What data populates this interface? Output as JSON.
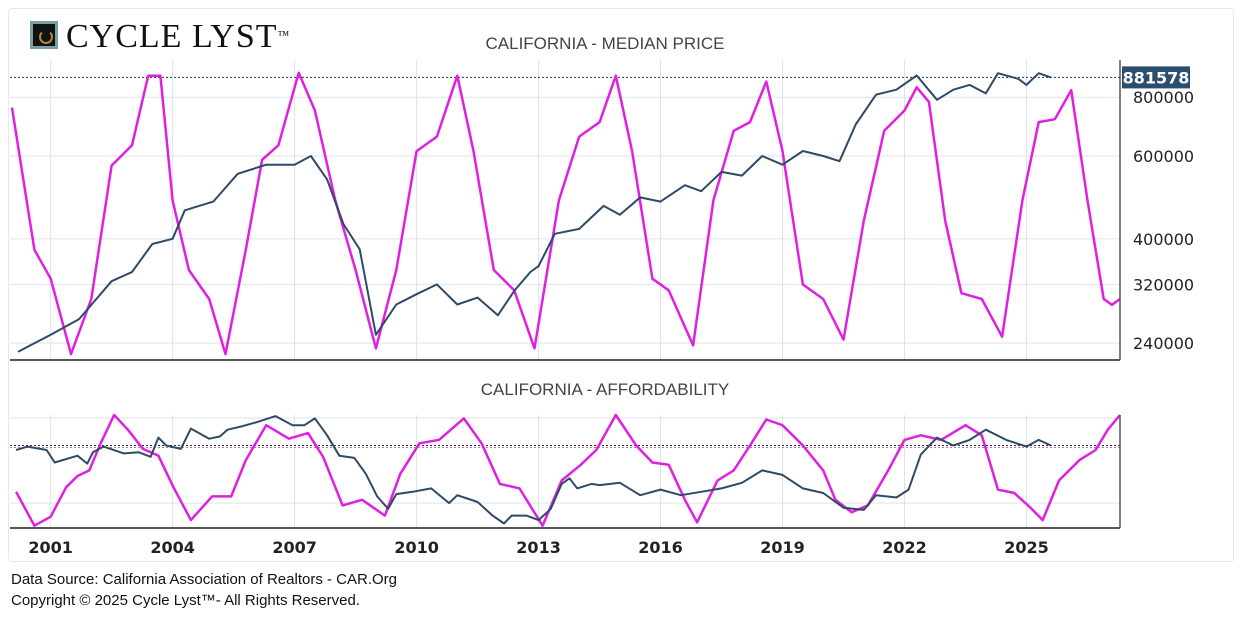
{
  "logo": {
    "text": "CYCLE LYST",
    "tm": "™"
  },
  "footer": {
    "source": "Data Source: California Association of Realtors - CAR.Org",
    "copyright": "Copyright © 2025 Cycle Lyst™- All Rights Reserved."
  },
  "colors": {
    "price": "#2e4a66",
    "cycle": "#e020e0",
    "last_value_bg": "#2b4d70",
    "grid": "#dde3e8"
  },
  "chart_data": [
    {
      "type": "line",
      "title": "CALIFORNIA - MEDIAN PRICE",
      "y_scale": "log",
      "ylim": [
        221000,
        960000
      ],
      "xlim": [
        2000.0,
        2027.3
      ],
      "x_ticks": [
        "2001",
        "2004",
        "2007",
        "2010",
        "2013",
        "2016",
        "2019",
        "2022",
        "2025"
      ],
      "y_ticks": [
        240000,
        320000,
        400000,
        600000,
        800000
      ],
      "y_tick_labels": [
        "240000",
        "320000",
        "400000",
        "600000",
        "800000"
      ],
      "last_value": 881578,
      "last_value_label": "881578",
      "grid": true,
      "series": [
        {
          "key": "price",
          "x": [
            2000.2,
            2001,
            2001.7,
            2002.5,
            2003,
            2003.5,
            2004,
            2004.3,
            2005,
            2005.6,
            2006.3,
            2007,
            2007.4,
            2007.8,
            2008.2,
            2008.6,
            2009,
            2009.5,
            2010,
            2010.5,
            2011,
            2011.5,
            2012,
            2012.4,
            2012.8,
            2013,
            2013.4,
            2014,
            2014.6,
            2015,
            2015.5,
            2016,
            2016.6,
            2017,
            2017.5,
            2018,
            2018.5,
            2019,
            2019.5,
            2020,
            2020.4,
            2020.8,
            2021.3,
            2021.8,
            2022.3,
            2022.8,
            2023.2,
            2023.6,
            2024,
            2024.3,
            2024.8,
            2025,
            2025.3,
            2025.6
          ],
          "y": [
            230000,
            250000,
            270000,
            325000,
            340000,
            390000,
            400000,
            460000,
            480000,
            550000,
            575000,
            575000,
            600000,
            535000,
            430000,
            380000,
            250000,
            290000,
            305000,
            320000,
            290000,
            300000,
            275000,
            310000,
            340000,
            350000,
            410000,
            420000,
            470000,
            450000,
            490000,
            480000,
            520000,
            505000,
            555000,
            545000,
            600000,
            575000,
            615000,
            600000,
            585000,
            700000,
            810000,
            830000,
            890000,
            790000,
            830000,
            850000,
            815000,
            900000,
            875000,
            850000,
            900000,
            881578
          ]
        },
        {
          "key": "cycle",
          "x": [
            2000.05,
            2000.6,
            2001,
            2001.5,
            2002,
            2002.5,
            2003,
            2003.4,
            2003.7,
            2004,
            2004.4,
            2004.9,
            2005.3,
            2005.8,
            2006.2,
            2006.6,
            2007.1,
            2007.5,
            2008,
            2008.5,
            2009,
            2009.5,
            2010,
            2010.5,
            2011,
            2011.4,
            2011.9,
            2012.4,
            2012.9,
            2013.5,
            2014,
            2014.5,
            2014.9,
            2015.3,
            2015.8,
            2016.2,
            2016.8,
            2017.3,
            2017.8,
            2018.2,
            2018.6,
            2019,
            2019.5,
            2020,
            2020.5,
            2021,
            2021.5,
            2022,
            2022.3,
            2022.6,
            2023,
            2023.4,
            2023.9,
            2024.4,
            2024.9,
            2025.3,
            2025.7,
            2026.1,
            2026.5,
            2026.9,
            2027.1,
            2027.3
          ],
          "y": [
            86,
            37,
            27,
            1,
            20,
            66,
            73,
            97,
            97,
            54,
            30,
            20,
            1,
            37,
            68,
            73,
            98,
            85,
            54,
            30,
            3,
            30,
            71,
            76,
            97,
            71,
            30,
            23,
            3,
            54,
            76,
            81,
            97,
            71,
            27,
            23,
            4,
            54,
            78,
            81,
            95,
            71,
            25,
            20,
            6,
            47,
            78,
            85,
            93,
            88,
            47,
            22,
            20,
            7,
            54,
            81,
            82,
            92,
            54,
            20,
            18,
            20
          ]
        }
      ]
    },
    {
      "type": "line",
      "title": "CALIFORNIA - AFFORDABILITY",
      "ylim": [
        0,
        100
      ],
      "xlim": [
        2000.0,
        2027.3
      ],
      "reference_line": 73,
      "grid": true,
      "series": [
        {
          "key": "affordability",
          "x": [
            2000.15,
            2000.43,
            2000.9,
            2001.1,
            2001.66,
            2001.9,
            2002.04,
            2002.3,
            2002.8,
            2003.17,
            2003.46,
            2003.65,
            2003.84,
            2004.2,
            2004.45,
            2004.9,
            2005.16,
            2005.35,
            2005.7,
            2006.1,
            2006.53,
            2006.95,
            2007.24,
            2007.5,
            2007.8,
            2008.1,
            2008.47,
            2008.75,
            2009.03,
            2009.3,
            2009.5,
            2009.9,
            2010.36,
            2010.8,
            2011.0,
            2011.5,
            2011.87,
            2012.15,
            2012.34,
            2012.7,
            2013,
            2013.3,
            2013.57,
            2013.76,
            2013.95,
            2014.3,
            2014.5,
            2015,
            2015.5,
            2016,
            2016.5,
            2017,
            2017.5,
            2018,
            2018.5,
            2019,
            2019.5,
            2020,
            2020.5,
            2021,
            2021.3,
            2021.8,
            2022.1,
            2022.4,
            2022.8,
            2023.2,
            2023.6,
            2024,
            2024.5,
            2025,
            2025.3,
            2025.6
          ],
          "y": [
            69,
            72,
            69,
            58,
            64,
            57,
            67,
            72,
            66,
            67,
            63,
            80,
            73,
            70,
            88,
            79,
            81,
            87,
            90,
            94,
            99,
            91,
            91,
            97,
            82,
            64,
            62,
            48,
            28,
            17,
            30,
            32,
            35,
            22,
            29,
            23,
            11,
            4,
            11,
            11,
            7,
            17,
            39,
            44,
            35,
            39,
            38,
            40,
            29,
            34,
            29,
            32,
            35,
            40,
            51,
            47,
            35,
            31,
            18,
            16,
            29,
            27,
            34,
            65,
            80,
            73,
            78,
            87,
            78,
            72,
            78,
            73
          ]
        },
        {
          "key": "cycle",
          "x": [
            2000.15,
            2000.6,
            2001,
            2001.38,
            2001.66,
            2001.95,
            2002.23,
            2002.56,
            2002.9,
            2003.27,
            2003.65,
            2004.02,
            2004.45,
            2004.97,
            2005.44,
            2005.8,
            2006.3,
            2006.86,
            2007.33,
            2007.7,
            2008.18,
            2008.66,
            2009.22,
            2009.6,
            2010.07,
            2010.55,
            2011.16,
            2011.6,
            2012.05,
            2012.53,
            2013.1,
            2013.57,
            2014.04,
            2014.42,
            2014.9,
            2015.4,
            2015.8,
            2016.2,
            2016.6,
            2016.9,
            2017.4,
            2017.8,
            2018.2,
            2018.6,
            2019,
            2019.5,
            2020,
            2020.3,
            2020.7,
            2021.1,
            2021.6,
            2022,
            2022.4,
            2022.9,
            2023.5,
            2023.9,
            2024.3,
            2024.7,
            2025.1,
            2025.4,
            2025.8,
            2026.3,
            2026.7,
            2027,
            2027.3
          ],
          "y": [
            32,
            2,
            10,
            36,
            46,
            51,
            75,
            100,
            87,
            70,
            64,
            36,
            7,
            28,
            28,
            60,
            91,
            79,
            84,
            63,
            20,
            25,
            11,
            48,
            75,
            78,
            97,
            75,
            39,
            35,
            2,
            42,
            56,
            69,
            100,
            73,
            58,
            56,
            25,
            5,
            42,
            51,
            73,
            96,
            91,
            73,
            51,
            25,
            14,
            20,
            51,
            78,
            82,
            78,
            91,
            82,
            34,
            31,
            18,
            7,
            42,
            60,
            69,
            87,
            100
          ]
        }
      ]
    }
  ]
}
